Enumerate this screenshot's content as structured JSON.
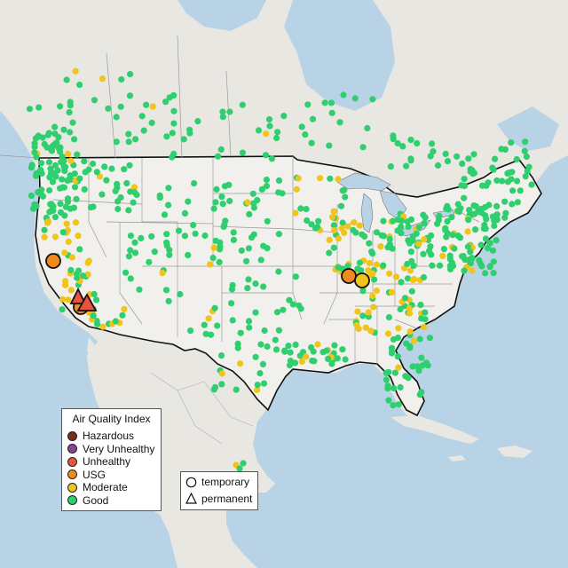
{
  "legend_aqi": {
    "title": "Air Quality Index",
    "items": [
      {
        "label": "Hazardous",
        "color": "#7e2a1e"
      },
      {
        "label": "Very Unhealthy",
        "color": "#8f3f97"
      },
      {
        "label": "Unhealthy",
        "color": "#e8543b"
      },
      {
        "label": "USG",
        "color": "#ef8a1e"
      },
      {
        "label": "Moderate",
        "color": "#f0c419"
      },
      {
        "label": "Good",
        "color": "#2fce6f"
      }
    ]
  },
  "legend_type": {
    "items": [
      {
        "label": "temporary",
        "shape": "circle"
      },
      {
        "label": "permanent",
        "shape": "triangle"
      }
    ]
  },
  "colors": {
    "water": "#b9d3e6",
    "land": "#e9e7e2",
    "us_land": "#f2f0ec",
    "border": "#111111",
    "state_lines": "#9a9a9a",
    "lakes": "#b9d3e6"
  },
  "icons": [
    "circle-marker-icon",
    "triangle-marker-icon"
  ]
}
